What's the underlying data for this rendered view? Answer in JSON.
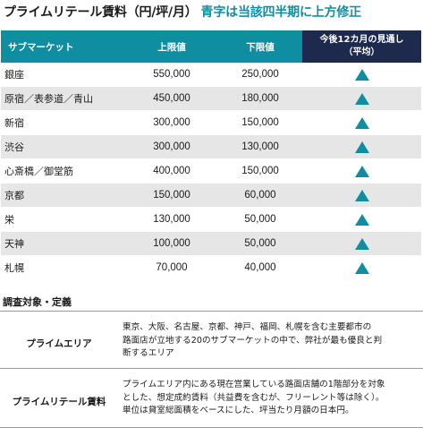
{
  "title": {
    "main": "プライムリテール賃料（円/坪/月）",
    "accent": "青字は当該四半期に上方修正"
  },
  "table": {
    "headers": {
      "area": "サブマーケット",
      "upper": "上限値",
      "lower": "下限値",
      "outlook_line1": "今後12カ月の見通し",
      "outlook_line2": "（平均）"
    },
    "rows": [
      {
        "area": "銀座",
        "upper": "550,000",
        "lower": "250,000",
        "outlook": "up-triangle-icon"
      },
      {
        "area": "原宿／表参道／青山",
        "upper": "450,000",
        "lower": "180,000",
        "outlook": "up-triangle-icon"
      },
      {
        "area": "新宿",
        "upper": "300,000",
        "lower": "150,000",
        "outlook": "up-triangle-icon"
      },
      {
        "area": "渋谷",
        "upper": "300,000",
        "lower": "130,000",
        "outlook": "up-triangle-icon"
      },
      {
        "area": "心斎橋／御堂筋",
        "upper": "400,000",
        "lower": "150,000",
        "outlook": "up-triangle-icon"
      },
      {
        "area": "京都",
        "upper": "150,000",
        "lower": "60,000",
        "outlook": "up-triangle-icon"
      },
      {
        "area": "栄",
        "upper": "130,000",
        "lower": "50,000",
        "outlook": "up-triangle-icon"
      },
      {
        "area": "天神",
        "upper": "100,000",
        "lower": "50,000",
        "outlook": "up-triangle-icon"
      },
      {
        "area": "札幌",
        "upper": "70,000",
        "lower": "40,000",
        "outlook": "up-triangle-icon"
      }
    ]
  },
  "definitions": {
    "heading": "調査対象・定義",
    "items": [
      {
        "term": "プライムエリア",
        "desc_lines": [
          "東京、大阪、名古屋、京都、神戸、福岡、札幌を含む主要都市の",
          "路面店が立地する20のサブマーケットの中で、弊社が最も優良と判",
          "断するエリア"
        ]
      },
      {
        "term": "プライムリテール賃料",
        "desc_lines": [
          "プライムエリア内にある現在営業している路面店舗の1階部分を対象",
          "とした、想定成約賃料（共益費を含むが、フリーレント等は除く）。",
          "単位は貸室総面積をベースにした、坪当たり月額の日本円。"
        ]
      }
    ]
  },
  "colors": {
    "accent": "#0f8ea1",
    "header_dark": "#1e2a4d",
    "row_alt": "#e6e6e6"
  }
}
